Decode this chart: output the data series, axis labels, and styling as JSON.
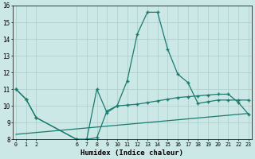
{
  "xlabel": "Humidex (Indice chaleur)",
  "xticks": [
    0,
    1,
    2,
    6,
    7,
    8,
    9,
    10,
    11,
    12,
    13,
    14,
    15,
    16,
    17,
    18,
    19,
    20,
    21,
    22,
    23
  ],
  "yticks": [
    8,
    9,
    10,
    11,
    12,
    13,
    14,
    15,
    16
  ],
  "ylim": [
    8,
    16
  ],
  "xlim": [
    -0.3,
    23.3
  ],
  "line1_x": [
    0,
    1,
    2,
    6,
    7,
    8,
    9,
    10,
    11,
    12,
    13,
    14,
    15,
    16,
    17,
    18,
    19,
    20,
    21,
    22,
    23
  ],
  "line1_y": [
    11.0,
    10.4,
    9.3,
    8.0,
    8.0,
    11.0,
    9.6,
    10.0,
    11.5,
    14.3,
    15.6,
    15.6,
    13.4,
    11.9,
    11.4,
    10.15,
    10.25,
    10.35,
    10.35,
    10.35,
    10.35
  ],
  "line2_x": [
    0,
    1,
    2,
    6,
    7,
    8,
    9,
    10,
    11,
    12,
    13,
    14,
    15,
    16,
    17,
    18,
    19,
    20,
    21,
    22,
    23
  ],
  "line2_y": [
    11.0,
    10.4,
    9.3,
    8.0,
    8.0,
    8.1,
    9.7,
    10.0,
    10.05,
    10.1,
    10.2,
    10.3,
    10.4,
    10.5,
    10.55,
    10.6,
    10.65,
    10.7,
    10.7,
    10.2,
    9.5
  ],
  "line3_x": [
    0,
    23
  ],
  "line3_y": [
    8.3,
    9.55
  ],
  "line_color": "#1a7a6e",
  "bg_color": "#cce8e6",
  "grid_color": "#aaccca"
}
